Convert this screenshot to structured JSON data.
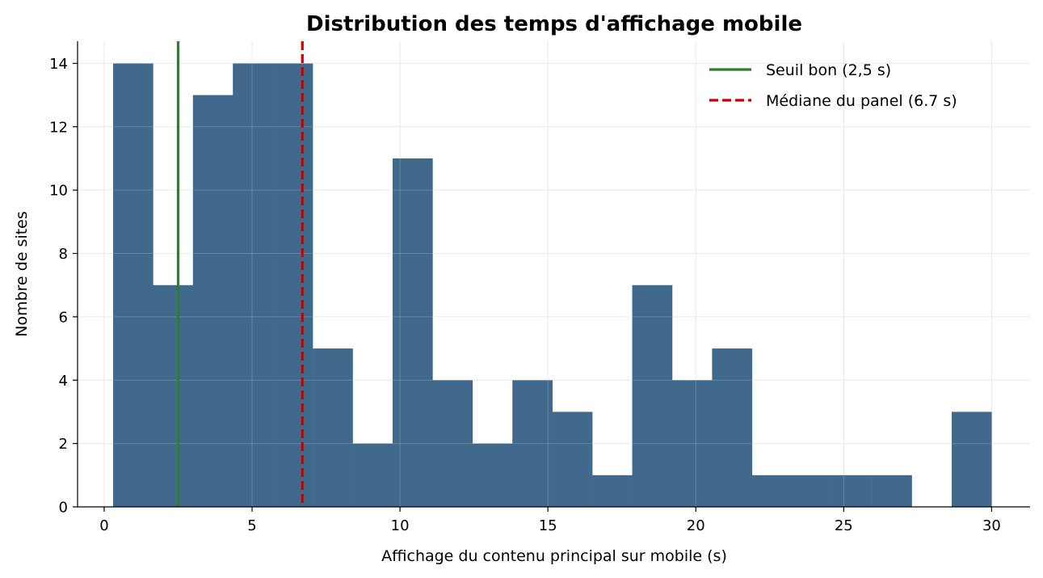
{
  "chart_data": {
    "type": "bar",
    "subtype": "histogram",
    "title": "Distribution des temps d'affichage mobile",
    "xlabel": "Affichage du contenu principal sur mobile (s)",
    "ylabel": "Nombre de sites",
    "xlim": [
      -0.9,
      31.3
    ],
    "ylim": [
      0,
      14.7
    ],
    "xticks": [
      0,
      5,
      10,
      15,
      20,
      25,
      30
    ],
    "yticks": [
      0,
      2,
      4,
      6,
      8,
      10,
      12,
      14
    ],
    "grid": true,
    "legend_position": "top-right",
    "bins": [
      {
        "x0": 0.3,
        "x1": 1.65,
        "count": 14
      },
      {
        "x0": 1.65,
        "x1": 3.0,
        "count": 7
      },
      {
        "x0": 3.0,
        "x1": 4.35,
        "count": 13
      },
      {
        "x0": 4.35,
        "x1": 5.7,
        "count": 14
      },
      {
        "x0": 5.7,
        "x1": 7.05,
        "count": 14
      },
      {
        "x0": 7.05,
        "x1": 8.4,
        "count": 5
      },
      {
        "x0": 8.4,
        "x1": 9.75,
        "count": 2
      },
      {
        "x0": 9.75,
        "x1": 11.1,
        "count": 11
      },
      {
        "x0": 11.1,
        "x1": 12.45,
        "count": 4
      },
      {
        "x0": 12.45,
        "x1": 13.8,
        "count": 2
      },
      {
        "x0": 13.8,
        "x1": 15.15,
        "count": 4
      },
      {
        "x0": 15.15,
        "x1": 16.5,
        "count": 3
      },
      {
        "x0": 16.5,
        "x1": 17.85,
        "count": 1
      },
      {
        "x0": 17.85,
        "x1": 19.2,
        "count": 7
      },
      {
        "x0": 19.2,
        "x1": 20.55,
        "count": 4
      },
      {
        "x0": 20.55,
        "x1": 21.9,
        "count": 5
      },
      {
        "x0": 21.9,
        "x1": 23.25,
        "count": 1
      },
      {
        "x0": 23.25,
        "x1": 24.6,
        "count": 1
      },
      {
        "x0": 24.6,
        "x1": 25.95,
        "count": 1
      },
      {
        "x0": 25.95,
        "x1": 27.3,
        "count": 1
      },
      {
        "x0": 27.3,
        "x1": 28.65,
        "count": 0
      },
      {
        "x0": 28.65,
        "x1": 30.0,
        "count": 3
      }
    ],
    "bar_color": "#41698c",
    "reference_lines": [
      {
        "label": "Seuil bon (2,5 s)",
        "x": 2.5,
        "color": "#2e7d32",
        "style": "solid"
      },
      {
        "label": "Médiane du panel (6.7 s)",
        "x": 6.7,
        "color": "#cc0000",
        "style": "dashed"
      }
    ]
  }
}
